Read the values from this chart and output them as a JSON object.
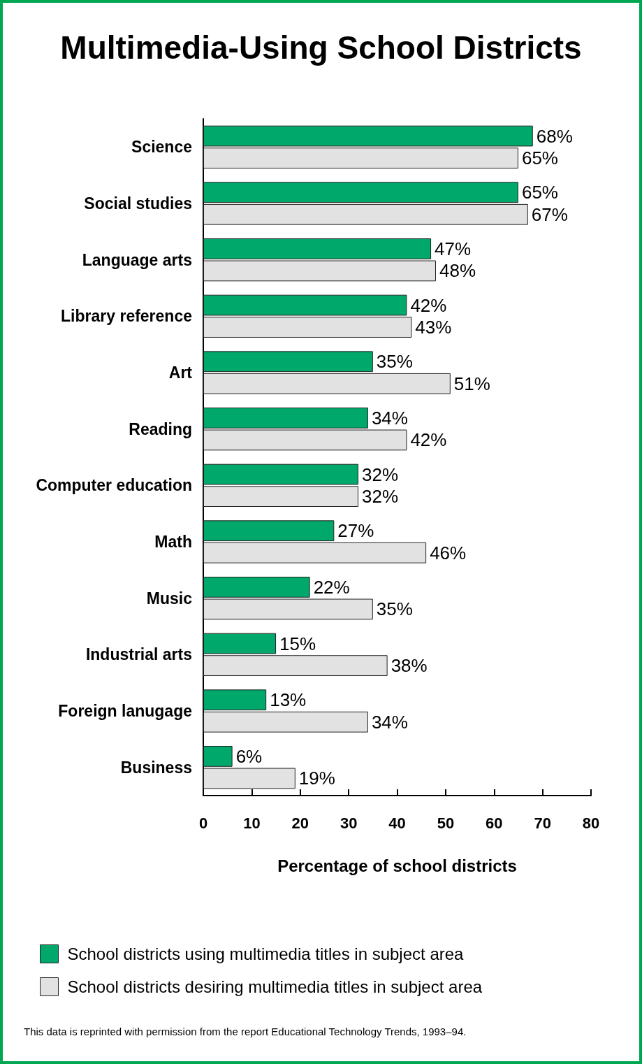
{
  "chart_data": {
    "type": "bar",
    "orientation": "horizontal",
    "title": "Multimedia-Using School Districts",
    "xlabel": "Percentage of school districts",
    "categories": [
      "Science",
      "Social studies",
      "Language arts",
      "Library reference",
      "Art",
      "Reading",
      "Computer education",
      "Math",
      "Music",
      "Industrial arts",
      "Foreign lanugage",
      "Business"
    ],
    "series": [
      {
        "name": "School districts using multimedia titles in subject area",
        "color": "#00a86b",
        "values": [
          68,
          65,
          47,
          42,
          35,
          34,
          32,
          27,
          22,
          15,
          13,
          6
        ],
        "value_labels": [
          "68%",
          "65%",
          "47%",
          "42%",
          "35%",
          "34%",
          "32%",
          "27%",
          "22%",
          "15%",
          "13%",
          "6%"
        ]
      },
      {
        "name": "School districts desiring multimedia titles in subject area",
        "color": "#e2e2e2",
        "values": [
          65,
          67,
          48,
          43,
          51,
          42,
          32,
          46,
          35,
          38,
          34,
          19
        ],
        "value_labels": [
          "65%",
          "67%",
          "48%",
          "43%",
          "51%",
          "42%",
          "32%",
          "46%",
          "35%",
          "38%",
          "34%",
          "19%"
        ]
      }
    ],
    "xlim": [
      0,
      80
    ],
    "xticks": [
      0,
      10,
      20,
      30,
      40,
      50,
      60,
      70,
      80
    ],
    "grid": false,
    "legend": "bottom left",
    "annotations": [
      "This data is reprinted with permission from the report Educational Technology Trends, 1993–94."
    ]
  }
}
